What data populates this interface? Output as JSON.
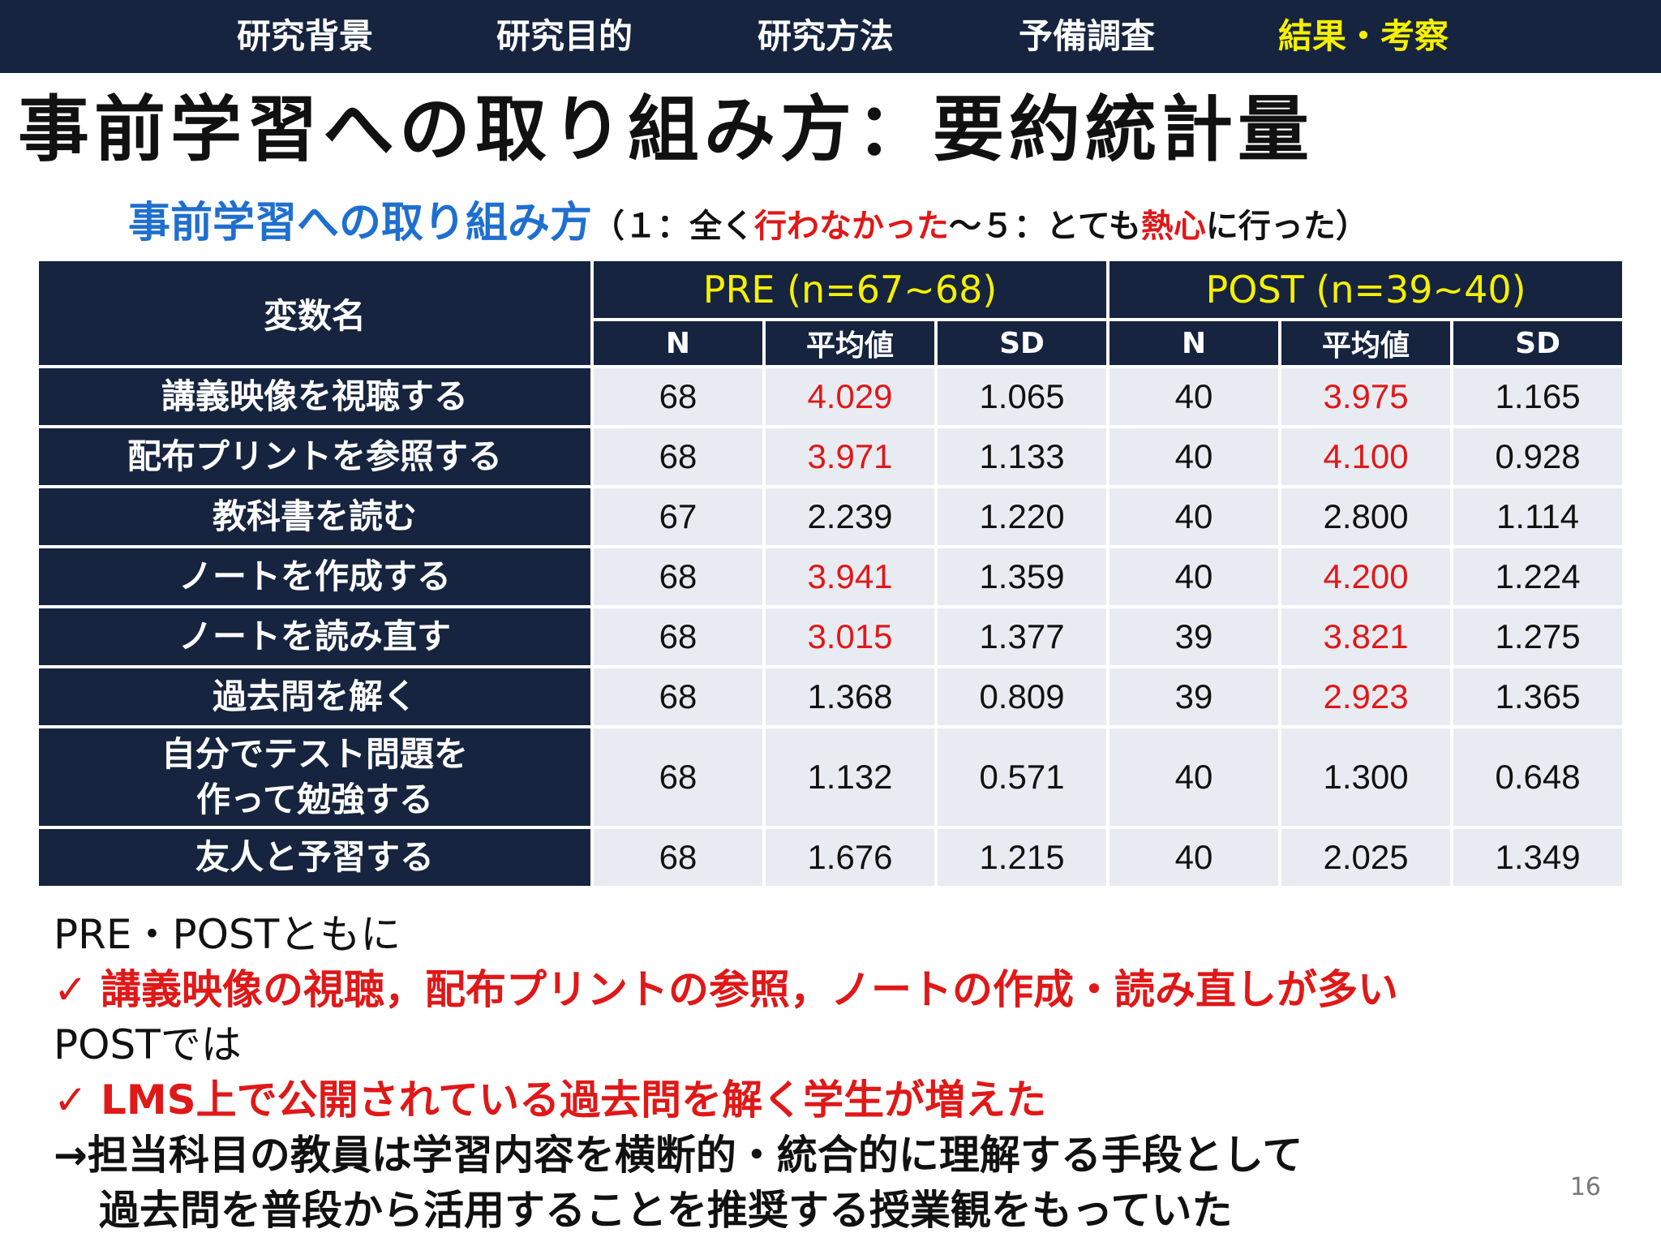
{
  "nav": {
    "items": [
      {
        "label": "研究背景"
      },
      {
        "label": "研究目的"
      },
      {
        "label": "研究方法"
      },
      {
        "label": "予備調査"
      },
      {
        "label": "結果・考察"
      }
    ],
    "active_color": "#f6f000",
    "background": "#16243f"
  },
  "title": "事前学習への取り組み方：要約統計量",
  "subtitle": {
    "lead": "事前学習への取り組み方",
    "p1": "（１：全く",
    "r1": "行わなかった",
    "p2": "～５：とても",
    "r2": "熱心",
    "p3": "に行った）"
  },
  "table": {
    "var_header": "変数名",
    "pre_header": "PRE (n=67~68)",
    "post_header": "POST (n=39~40)",
    "sub_headers": {
      "n": "N",
      "mean": "平均値",
      "sd": "SD"
    },
    "rows": [
      {
        "label": "講義映像を視聴する",
        "pre_n": "68",
        "pre_mean": "4.029",
        "pre_sd": "1.065",
        "post_n": "40",
        "post_mean": "3.975",
        "post_sd": "1.165"
      },
      {
        "label": "配布プリントを参照する",
        "pre_n": "68",
        "pre_mean": "3.971",
        "pre_sd": "1.133",
        "post_n": "40",
        "post_mean": "4.100",
        "post_sd": "0.928"
      },
      {
        "label": "教科書を読む",
        "pre_n": "67",
        "pre_mean": "2.239",
        "pre_sd": "1.220",
        "post_n": "40",
        "post_mean": "2.800",
        "post_sd": "1.114"
      },
      {
        "label": "ノートを作成する",
        "pre_n": "68",
        "pre_mean": "3.941",
        "pre_sd": "1.359",
        "post_n": "40",
        "post_mean": "4.200",
        "post_sd": "1.224"
      },
      {
        "label": "ノートを読み直す",
        "pre_n": "68",
        "pre_mean": "3.015",
        "pre_sd": "1.377",
        "post_n": "39",
        "post_mean": "3.821",
        "post_sd": "1.275"
      },
      {
        "label": "過去問を解く",
        "pre_n": "68",
        "pre_mean": "1.368",
        "pre_sd": "0.809",
        "post_n": "39",
        "post_mean": "2.923",
        "post_sd": "1.365"
      },
      {
        "label_line1": "自分でテスト問題を",
        "label_line2": "作って勉強する",
        "pre_n": "68",
        "pre_mean": "1.132",
        "pre_sd": "0.571",
        "post_n": "40",
        "post_mean": "1.300",
        "post_sd": "0.648"
      },
      {
        "label": "友人と予習する",
        "pre_n": "68",
        "pre_mean": "1.676",
        "pre_sd": "1.215",
        "post_n": "40",
        "post_mean": "2.025",
        "post_sd": "1.349"
      }
    ],
    "highlight_color": "#e01818"
  },
  "notes": {
    "line1": "PRE・POSTともに",
    "check_symbol": "✓",
    "check1": "講義映像の視聴，配布プリントの参照，ノートの作成・読み直しが多い",
    "line3": "POSTでは",
    "check2": "LMS上で公開されている過去問を解く学生が増えた",
    "arrow_symbol": "→",
    "conclusion1": "担当科目の教員は学習内容を横断的・統合的に理解する手段として",
    "conclusion2": "過去問を普段から活用することを推奨する授業観をもっていた"
  },
  "page_number": "16"
}
